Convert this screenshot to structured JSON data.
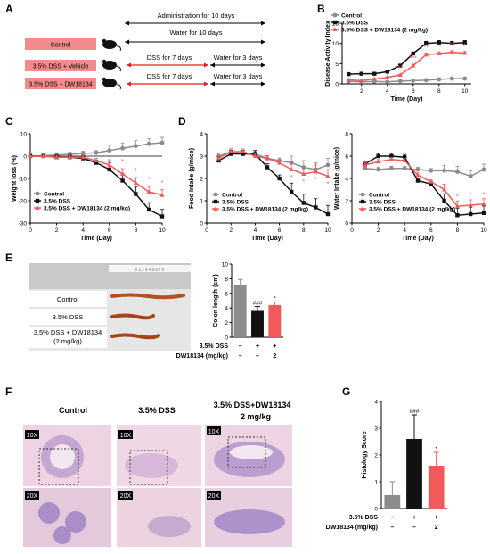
{
  "panels": {
    "A": {
      "letter": "A",
      "header_admin": "Administration for 10 days",
      "header_water": "Water for 10 days",
      "groups": [
        "Control",
        "3.5% DSS + Vehicle",
        "3.5% DSS + DW18134"
      ],
      "dss_label": "DSS for 7 days",
      "water3_label": "Water for 3 days"
    },
    "B": {
      "letter": "B"
    },
    "C": {
      "letter": "C"
    },
    "D": {
      "letter": "D"
    },
    "E": {
      "letter": "E",
      "photo_labels": [
        "Control",
        "3.5% DSS",
        "3.5% DSS + DW18134",
        "(2 mg/kg)"
      ],
      "ruler_text": "0  1  2  3  4  5  6  7  8"
    },
    "F": {
      "letter": "F",
      "col_titles": [
        "Control",
        "3.5% DSS",
        "3.5% DSS+DW18134",
        "2 mg/kg"
      ],
      "mag_top": "10X",
      "mag_bottom": "20X"
    },
    "G": {
      "letter": "G"
    }
  },
  "legend": {
    "control": "Control",
    "dss": "3.5% DSS",
    "treat": "3.5% DSS + DW18134 (2 mg/kg)"
  },
  "treatment_rows": {
    "dss_label": "3.5% DSS",
    "drug_label": "DW18134 (mg/kg)",
    "dss_marks": [
      "–",
      "+",
      "+"
    ],
    "drug_marks": [
      "–",
      "–",
      "2"
    ]
  },
  "colors": {
    "control": "#8c8c8c",
    "dss": "#111111",
    "treat": "#f05a5a",
    "red_arrow": "#e02020",
    "pink_box": "#f28b8b"
  },
  "chart_data": [
    {
      "id": "B",
      "type": "line",
      "ylabel": "Disease Activity Index",
      "xlabel": "Time (Day)",
      "ylim": [
        0,
        15
      ],
      "yticks": [
        0,
        5,
        10,
        15
      ],
      "xlim": [
        0.5,
        10.5
      ],
      "xticks": [
        2,
        4,
        6,
        8,
        10
      ],
      "x": [
        1,
        2,
        3,
        4,
        5,
        6,
        7,
        8,
        9,
        10
      ],
      "series": [
        {
          "name": "Control",
          "values": [
            0.6,
            0.5,
            0.6,
            0.5,
            0.7,
            0.8,
            0.9,
            1.1,
            1.3,
            1.3
          ]
        },
        {
          "name": "3.5% DSS",
          "values": [
            2.4,
            2.5,
            2.5,
            3.0,
            4.5,
            7.5,
            10.0,
            10.2,
            10.0,
            10.2
          ]
        },
        {
          "name": "3.5% DSS + DW18134 (2 mg/kg)",
          "values": [
            1.0,
            0.8,
            1.2,
            1.6,
            2.2,
            4.5,
            7.2,
            7.5,
            7.8,
            7.6
          ]
        }
      ],
      "stars": [
        {
          "x": 5,
          "text": "**"
        },
        {
          "x": 6,
          "text": "***"
        },
        {
          "x": 7,
          "text": "**"
        },
        {
          "x": 8,
          "text": "**"
        },
        {
          "x": 9,
          "text": "**"
        },
        {
          "x": 10,
          "text": "*"
        }
      ]
    },
    {
      "id": "C",
      "type": "line",
      "ylabel": "Weight loss (%)",
      "xlabel": "Time (Day)",
      "ylim": [
        -30,
        10
      ],
      "yticks": [
        -30,
        -20,
        -10,
        0,
        10
      ],
      "xlim": [
        0,
        10
      ],
      "xticks": [
        0,
        2,
        4,
        6,
        8,
        10
      ],
      "x": [
        0,
        1,
        2,
        3,
        4,
        5,
        6,
        7,
        8,
        9,
        10
      ],
      "series": [
        {
          "name": "Control",
          "values": [
            0,
            0.2,
            0.5,
            0.8,
            1.2,
            1.5,
            2.5,
            3.5,
            4.5,
            5.5,
            6.0
          ]
        },
        {
          "name": "3.5% DSS",
          "values": [
            0,
            0,
            -0.5,
            -0.5,
            -1.0,
            -3.0,
            -6.0,
            -11.0,
            -17.0,
            -24.0,
            -27.0
          ]
        },
        {
          "name": "3.5% DSS + DW18134 (2 mg/kg)",
          "values": [
            0,
            0,
            -0.5,
            -0.5,
            -0.5,
            -2.0,
            -4.0,
            -8.0,
            -12.0,
            -16.0,
            -17.5
          ]
        }
      ],
      "stars": [
        {
          "x": 7,
          "text": "*"
        },
        {
          "x": 8,
          "text": "*"
        },
        {
          "x": 9,
          "text": "*"
        },
        {
          "x": 10,
          "text": "*"
        }
      ]
    },
    {
      "id": "D1",
      "type": "line",
      "ylabel": "Food Intake (g/mice)",
      "xlabel": "Time (Day)",
      "ylim": [
        0,
        4
      ],
      "yticks": [
        0,
        1,
        2,
        3,
        4
      ],
      "xlim": [
        0,
        10
      ],
      "xticks": [
        0,
        2,
        4,
        6,
        8,
        10
      ],
      "x": [
        1,
        2,
        3,
        4,
        5,
        6,
        7,
        8,
        9,
        10
      ],
      "series": [
        {
          "name": "Control",
          "values": [
            3.0,
            3.2,
            3.1,
            3.1,
            2.9,
            2.8,
            2.7,
            2.5,
            2.4,
            2.6
          ]
        },
        {
          "name": "3.5% DSS",
          "values": [
            2.8,
            3.1,
            3.1,
            3.1,
            2.5,
            2.0,
            1.4,
            0.9,
            0.7,
            0.4
          ]
        },
        {
          "name": "3.5% DSS + DW18134 (2 mg/kg)",
          "values": [
            2.9,
            3.2,
            3.2,
            3.0,
            2.9,
            2.7,
            2.4,
            2.2,
            2.3,
            2.1
          ]
        }
      ],
      "stars": [
        {
          "x": 7,
          "text": "*"
        },
        {
          "x": 8,
          "text": "*"
        },
        {
          "x": 9,
          "text": "*"
        },
        {
          "x": 10,
          "text": "*"
        }
      ]
    },
    {
      "id": "D2",
      "type": "line",
      "ylabel": "Water Intake (g/mice)",
      "xlabel": "Time (Day)",
      "ylim": [
        0,
        8
      ],
      "yticks": [
        0,
        2,
        4,
        6,
        8
      ],
      "xlim": [
        0,
        10
      ],
      "xticks": [
        0,
        2,
        4,
        6,
        8,
        10
      ],
      "x": [
        1,
        2,
        3,
        4,
        5,
        6,
        7,
        8,
        9,
        10
      ],
      "series": [
        {
          "name": "Control",
          "values": [
            4.9,
            4.8,
            4.9,
            4.9,
            4.8,
            4.7,
            4.7,
            4.6,
            4.2,
            4.8
          ]
        },
        {
          "name": "3.5% DSS",
          "values": [
            5.3,
            6.0,
            6.0,
            5.9,
            3.8,
            3.5,
            2.0,
            0.7,
            0.8,
            0.9
          ]
        },
        {
          "name": "3.5% DSS + DW18134 (2 mg/kg)",
          "values": [
            5.2,
            5.5,
            5.7,
            5.6,
            4.3,
            3.7,
            3.0,
            1.5,
            1.6,
            1.7
          ]
        }
      ],
      "stars": [
        {
          "x": 8,
          "text": "*"
        },
        {
          "x": 9,
          "text": "*"
        },
        {
          "x": 10,
          "text": "*"
        }
      ]
    },
    {
      "id": "E",
      "type": "bar",
      "ylabel": "Colon length (cm)",
      "ylim": [
        0,
        10
      ],
      "yticks": [
        0,
        2,
        4,
        6,
        8,
        10
      ],
      "categories": [
        "Control",
        "3.5% DSS",
        "3.5% DSS + DW18134"
      ],
      "values": [
        7.1,
        3.6,
        4.4
      ],
      "errors": [
        0.8,
        0.6,
        0.4
      ],
      "annotations": [
        "",
        "###",
        "*"
      ]
    },
    {
      "id": "G",
      "type": "bar",
      "ylabel": "Histology Score",
      "ylim": [
        0,
        4
      ],
      "yticks": [
        0,
        1,
        2,
        3,
        4
      ],
      "categories": [
        "Control",
        "3.5% DSS",
        "3.5% DSS + DW18134"
      ],
      "values": [
        0.5,
        2.6,
        1.6
      ],
      "errors": [
        0.5,
        0.9,
        0.5
      ],
      "annotations": [
        "",
        "###",
        "*"
      ]
    }
  ]
}
